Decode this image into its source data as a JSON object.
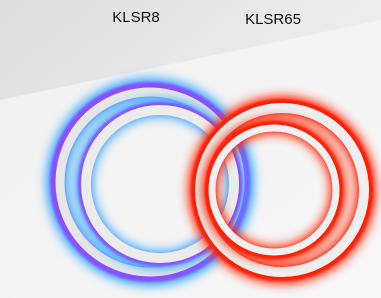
{
  "labels": {
    "left": "KLSR8",
    "right": "KLSR65"
  }
}
